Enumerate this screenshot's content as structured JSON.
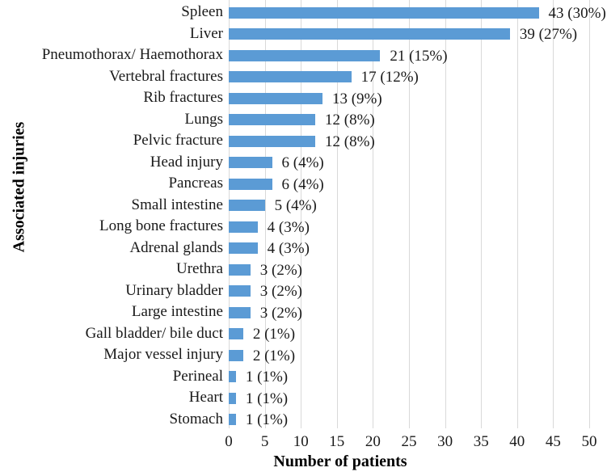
{
  "chart_data": {
    "type": "bar",
    "orientation": "horizontal",
    "title": "",
    "xlabel": "Number of patients",
    "ylabel": "Associated injuries",
    "xlim": [
      0,
      50
    ],
    "xticks": [
      0,
      5,
      10,
      15,
      20,
      25,
      30,
      35,
      40,
      45,
      50
    ],
    "grid": "vertical",
    "legend": "none",
    "bar_color": "#5b9bd5",
    "gridline_color": "#d9d9d9",
    "categories": [
      "Spleen",
      "Liver",
      "Pneumothorax/ Haemothorax",
      "Vertebral fractures",
      "Rib fractures",
      "Lungs",
      "Pelvic fracture",
      "Head injury",
      "Pancreas",
      "Small intestine",
      "Long bone fractures",
      "Adrenal glands",
      "Urethra",
      "Urinary bladder",
      "Large intestine",
      "Gall bladder/ bile duct",
      "Major vessel injury",
      "Perineal",
      "Heart",
      "Stomach"
    ],
    "values": [
      43,
      39,
      21,
      17,
      13,
      12,
      12,
      6,
      6,
      5,
      4,
      4,
      3,
      3,
      3,
      2,
      2,
      1,
      1,
      1
    ],
    "bar_labels": [
      "43 (30%)",
      "39 (27%)",
      "21 (15%)",
      "17 (12%)",
      "13 (9%)",
      "12 (8%)",
      "12 (8%)",
      "6 (4%)",
      "6 (4%)",
      "5 (4%)",
      "4 (3%)",
      "4 (3%)",
      "3 (2%)",
      "3 (2%)",
      "3 (2%)",
      "2 (1%)",
      "2 (1%)",
      "1 (1%)",
      "1 (1%)",
      "1 (1%)"
    ]
  }
}
